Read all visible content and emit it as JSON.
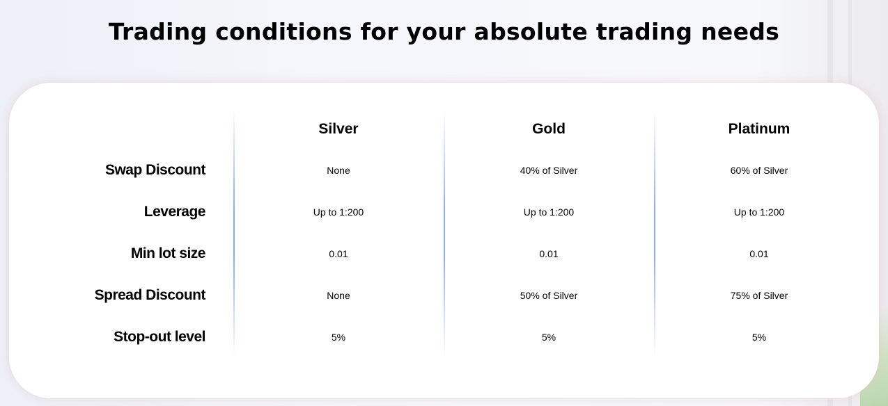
{
  "title": "Trading conditions for your absolute trading needs",
  "columns": [
    "Silver",
    "Gold",
    "Platinum"
  ],
  "rows": [
    {
      "label": "Swap Discount",
      "values": [
        "None",
        "40% of Silver",
        "60% of Silver"
      ]
    },
    {
      "label": "Leverage",
      "values": [
        "Up to 1:200",
        "Up to 1:200",
        "Up to 1:200"
      ]
    },
    {
      "label": "Min lot size",
      "values": [
        "0.01",
        "0.01",
        "0.01"
      ]
    },
    {
      "label": "Spread Discount",
      "values": [
        "None",
        "50% of Silver",
        "75% of Silver"
      ]
    },
    {
      "label": "Stop-out level",
      "values": [
        "5%",
        "5%",
        "5%"
      ]
    }
  ],
  "colors": {
    "divider": "#8eabf7",
    "card": "#ffffff"
  }
}
